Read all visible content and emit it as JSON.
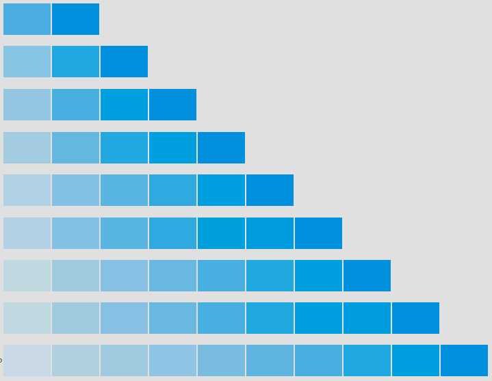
{
  "edge_text": "o",
  "rows": [
    {
      "colors": [
        "#4aafe0",
        "#0090dd"
      ]
    },
    {
      "colors": [
        "#88c4e4",
        "#20a8e0",
        "#0090dd"
      ]
    },
    {
      "colors": [
        "#94c6e4",
        "#48b0e0",
        "#00a0e0",
        "#0090dd"
      ]
    },
    {
      "colors": [
        "#a4cce0",
        "#64b8e0",
        "#20a8e0",
        "#00a0e0",
        "#0090dd"
      ]
    },
    {
      "colors": [
        "#b0d0e4",
        "#84c0e4",
        "#58b4e0",
        "#30a8e0",
        "#00a0e0",
        "#0090dd"
      ]
    },
    {
      "colors": [
        "#b4d0e4",
        "#84c0e4",
        "#58b4e0",
        "#30a8e0",
        "#00a0dc",
        "#009ce0",
        "#0090dd"
      ]
    },
    {
      "colors": [
        "#c0d8e0",
        "#a0cae0",
        "#88c0e4",
        "#68b8e0",
        "#48b0e0",
        "#20a8e0",
        "#00a0e0",
        "#0090dd"
      ]
    },
    {
      "colors": [
        "#c0d8e0",
        "#a0cae0",
        "#88c0e4",
        "#68b8e0",
        "#48b0e0",
        "#20a8e0",
        "#00a0e0",
        "#009ce0",
        "#0090dd"
      ]
    },
    {
      "colors": [
        "#c8d8e4",
        "#b0d0e0",
        "#a0cae0",
        "#90c4e4",
        "#78bce0",
        "#60b4e0",
        "#48b0e0",
        "#20a8e0",
        "#00a0e0",
        "#0090dd"
      ]
    }
  ]
}
